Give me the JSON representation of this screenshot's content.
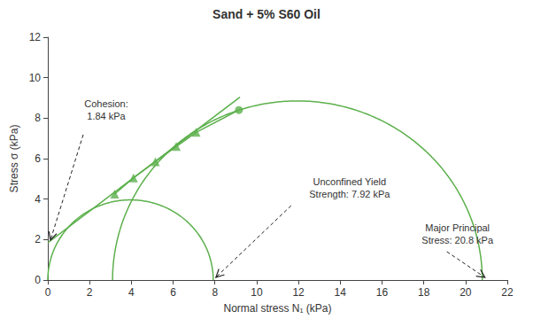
{
  "chart_data": {
    "type": "mohr",
    "title": "Sand + 5% S60 Oil",
    "x_label": "Normal stress N₁ (kPa)",
    "y_label": "Stress σ (kPa)",
    "xlim": [
      0,
      22
    ],
    "xticks": [
      0,
      2,
      4,
      6,
      8,
      10,
      12,
      14,
      16,
      18,
      20,
      22
    ],
    "ylim": [
      0,
      12
    ],
    "yticks": [
      0,
      2,
      4,
      6,
      8,
      10,
      12
    ],
    "grid": false,
    "series": [
      {
        "type": "circle",
        "center": [
          3.96,
          0
        ],
        "radius": 3.96,
        "color": "#5cb04c",
        "line_style": "solid"
      },
      {
        "type": "circle",
        "center": [
          11.95,
          0
        ],
        "radius": 8.85,
        "color": "#5cb04c",
        "line_style": "solid"
      },
      {
        "type": "line",
        "x": [
          0,
          9.2
        ],
        "values": [
          1.84,
          9.04
        ],
        "color": "#5cb04c",
        "marker": "none",
        "line_style": "solid"
      },
      {
        "type": "line",
        "x": [
          3.2,
          4.1,
          5.15,
          6.15,
          7.1,
          9.15
        ],
        "values": [
          4.25,
          5.05,
          5.85,
          6.6,
          7.3,
          8.4
        ],
        "color": "#5cb04c",
        "marker": "none",
        "line_style": "solid"
      },
      {
        "type": "scatter",
        "x": [
          3.2,
          4.1,
          5.15,
          6.15,
          7.1
        ],
        "values": [
          4.25,
          5.05,
          5.85,
          6.6,
          7.3
        ],
        "color": "#5cb04c",
        "marker": "triangle"
      },
      {
        "type": "scatter",
        "x": [
          9.15
        ],
        "values": [
          8.4
        ],
        "color": "#5cb04c",
        "marker": "circle"
      }
    ],
    "annotations": [
      {
        "text": "Cohesion:\n1.84 kPa",
        "x": 0,
        "y": 1.84
      },
      {
        "text": "Unconfined Yield\nStrength: 7.92 kPa",
        "x": 7.92,
        "y": 0
      },
      {
        "text": "Major Principal\nStress: 20.8 kPa",
        "x": 20.8,
        "y": 0
      }
    ]
  }
}
